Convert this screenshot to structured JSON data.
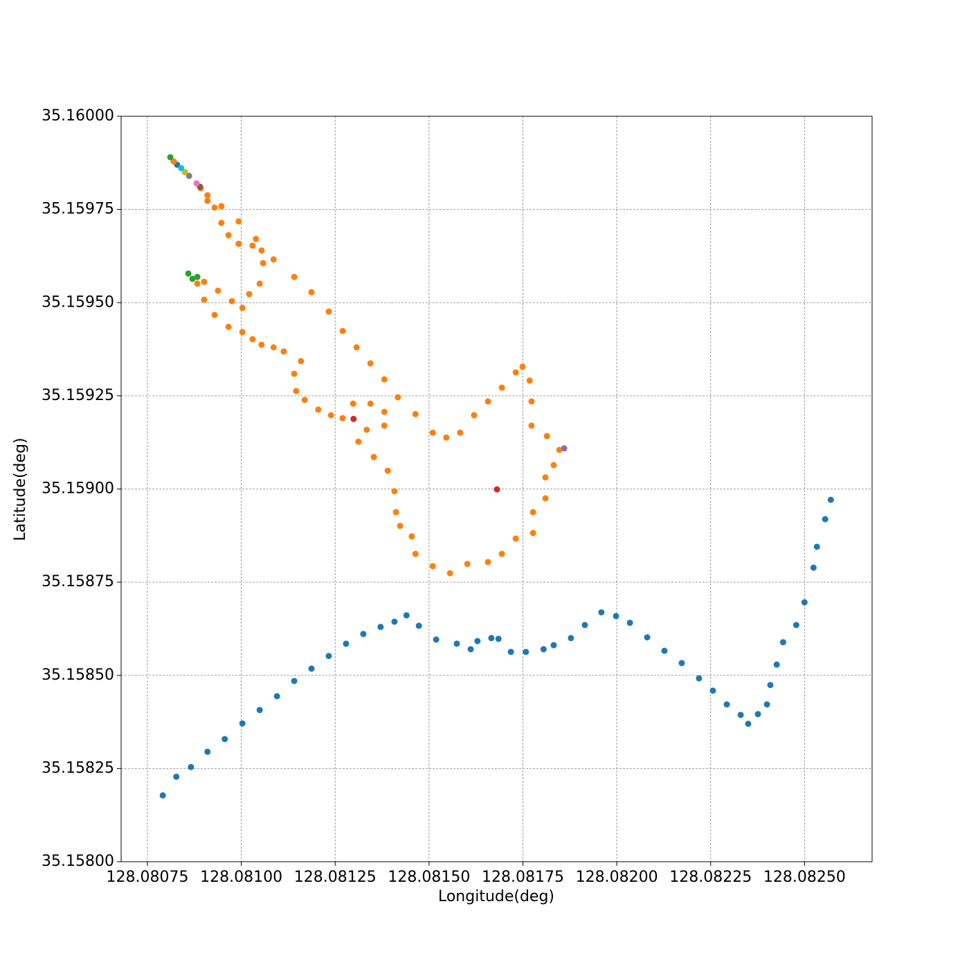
{
  "chart_data": {
    "type": "scatter",
    "xlabel": "Longitude(deg)",
    "ylabel": "Latitude(deg)",
    "xlim": [
      128.08068,
      128.08268
    ],
    "ylim": [
      35.158,
      35.16
    ],
    "xticks": [
      128.08075,
      {
        "value": 128.081,
        "label": "128.08100"
      },
      128.08125,
      {
        "value": 128.0815,
        "label": "128.08150"
      },
      128.08175,
      {
        "value": 128.082,
        "label": "128.08200"
      },
      128.08225,
      {
        "value": 128.0825,
        "label": "128.08250"
      }
    ],
    "yticks": [
      {
        "value": 35.158,
        "label": "35.15800"
      },
      35.15825,
      {
        "value": 35.1585,
        "label": "35.15850"
      },
      35.15875,
      {
        "value": 35.159,
        "label": "35.15900"
      },
      35.15925,
      {
        "value": 35.1595,
        "label": "35.15950"
      },
      35.15975,
      {
        "value": 35.16,
        "label": "35.16000"
      }
    ],
    "grid": true,
    "series": [
      {
        "color": "#1f77b4",
        "x": [
          128.080829,
          128.080791,
          128.080827,
          128.080866,
          128.08091,
          128.080956,
          128.081003,
          128.081049,
          128.081095,
          128.081141,
          128.081187,
          128.081233,
          128.081279,
          128.081325,
          128.081371,
          128.081408,
          128.08144,
          128.081473,
          128.081519,
          128.081574,
          128.081611,
          128.081629,
          128.081666,
          128.081685,
          128.081718,
          128.081758,
          128.081805,
          128.081832,
          128.081878,
          128.081915,
          128.081959,
          128.081998,
          128.082035,
          128.082081,
          128.082127,
          128.082173,
          128.082219,
          128.082256,
          128.082293,
          128.08233,
          128.08235,
          128.082376,
          128.0824,
          128.082409,
          128.082426,
          128.082443,
          128.082478,
          128.0825,
          128.082524,
          128.082533,
          128.082555,
          128.08257
        ],
        "values": [
          35.15987,
          35.158178,
          35.158228,
          35.158254,
          35.158295,
          35.158329,
          35.158371,
          35.158407,
          35.158444,
          35.158485,
          35.158518,
          35.158552,
          35.158585,
          35.158611,
          35.15863,
          35.158644,
          35.158661,
          35.158633,
          35.158596,
          35.158585,
          35.15857,
          35.158592,
          35.1586,
          35.158598,
          35.158563,
          35.158563,
          35.15857,
          35.158581,
          35.1586,
          35.158635,
          35.158669,
          35.158659,
          35.158641,
          35.158602,
          35.158566,
          35.158533,
          35.158492,
          35.158459,
          35.158422,
          35.158394,
          35.15837,
          35.158396,
          35.158422,
          35.158474,
          35.158529,
          35.158589,
          35.158635,
          35.158696,
          35.158789,
          35.158845,
          35.158919,
          35.158971
        ]
      },
      {
        "color": "#ff7f0e",
        "x": [
          128.08082,
          128.080892,
          128.08091,
          128.080947,
          128.080993,
          128.081039,
          128.081086,
          128.081141,
          128.081187,
          128.081233,
          128.08127,
          128.081307,
          128.081344,
          128.081381,
          128.081417,
          128.081464,
          128.08151,
          128.081546,
          128.081583,
          128.08162,
          128.081657,
          128.081694,
          128.081731,
          128.081749,
          128.081768,
          128.081773,
          128.081773,
          128.081814,
          128.081847,
          128.081832,
          128.08181,
          128.08181,
          128.081777,
          128.081777,
          128.081731,
          128.081694,
          128.081657,
          128.081602,
          128.081556,
          128.08151,
          128.081464,
          128.081454,
          128.081423,
          128.081412,
          128.081408,
          128.08139,
          128.081353,
          128.081312,
          128.081334,
          128.081381,
          128.081381,
          128.081344,
          128.081298,
          128.08127,
          128.081239,
          128.081205,
          128.081169,
          128.081146,
          128.081141,
          128.081159,
          128.081113,
          128.081086,
          128.081054,
          128.08103,
          128.081003,
          128.080966,
          128.080929,
          128.080901,
          128.080883,
          128.080901,
          128.080938,
          128.080975,
          128.081003,
          128.081021,
          128.081049,
          128.081058,
          128.081054,
          128.08103,
          128.080993,
          128.080966,
          128.080947,
          128.080929,
          128.08091
        ],
        "values": [
          35.159879,
          35.159807,
          35.159788,
          35.159759,
          35.159718,
          35.159671,
          35.159616,
          35.159569,
          35.159528,
          35.159476,
          35.159424,
          35.15938,
          35.159337,
          35.159294,
          35.159246,
          35.159201,
          35.159151,
          35.159138,
          35.159151,
          35.159198,
          35.159235,
          35.159272,
          35.159313,
          35.159328,
          35.159291,
          35.159235,
          35.15917,
          35.159142,
          35.159105,
          35.159064,
          35.159031,
          35.158975,
          35.158938,
          35.158882,
          35.158867,
          35.158826,
          35.158804,
          35.158799,
          35.158774,
          35.158793,
          35.158826,
          35.158873,
          35.158901,
          35.158938,
          35.158994,
          35.159049,
          35.159086,
          35.159127,
          35.159159,
          35.15917,
          35.159207,
          35.159229,
          35.159229,
          35.15919,
          35.159198,
          35.159213,
          35.159239,
          35.159263,
          35.159309,
          35.159343,
          35.159369,
          35.15938,
          35.159387,
          35.159402,
          35.159421,
          35.159435,
          35.159467,
          35.159508,
          35.159551,
          35.159556,
          35.159532,
          35.159504,
          35.159486,
          35.159523,
          35.159551,
          35.159606,
          35.15964,
          35.159653,
          35.159658,
          35.159681,
          35.159714,
          35.159755,
          35.159773
        ]
      },
      {
        "color": "#2ca02c",
        "x": [
          128.080811,
          128.080859,
          128.08087,
          128.080883
        ],
        "values": [
          35.15989,
          35.159578,
          35.159564,
          35.159569
        ]
      },
      {
        "color": "#d62728",
        "x": [
          128.081299,
          128.081681
        ],
        "values": [
          35.159188,
          35.158999
        ]
      },
      {
        "color": "#9467bd",
        "x": [
          128.08186
        ],
        "values": [
          35.159109
        ]
      },
      {
        "color": "#8c564b",
        "x": [
          128.08089
        ],
        "values": [
          35.159811
        ]
      },
      {
        "color": "#e377c2",
        "x": [
          128.080881
        ],
        "values": [
          35.15982
        ]
      },
      {
        "color": "#7f7f7f",
        "x": [
          128.080861
        ],
        "values": [
          35.15984
        ]
      },
      {
        "color": "#bcbd22",
        "x": [
          128.08085
        ],
        "values": [
          35.15985
        ]
      },
      {
        "color": "#17becf",
        "x": [
          128.08084
        ],
        "values": [
          35.159861
        ]
      }
    ]
  }
}
